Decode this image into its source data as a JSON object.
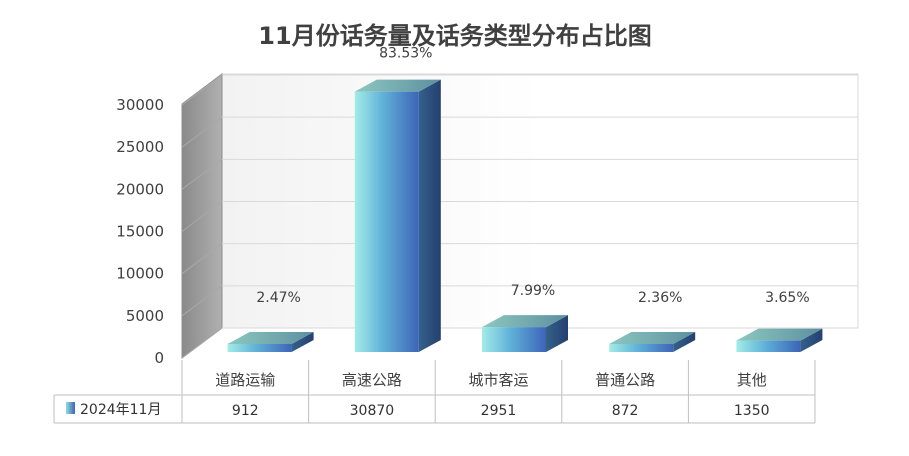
{
  "chart_data": {
    "type": "bar",
    "title": "11月份话务量及话务类型分布占比图",
    "categories": [
      "道路运输",
      "高速公路",
      "城市客运",
      "普通公路",
      "其他"
    ],
    "series": [
      {
        "name": "2024年11月",
        "values": [
          912,
          30870,
          2951,
          872,
          1350
        ]
      }
    ],
    "data_labels": [
      "2.47%",
      "83.53%",
      "7.99%",
      "2.36%",
      "3.65%"
    ],
    "y_ticks": [
      "0",
      "5000",
      "10000",
      "15000",
      "20000",
      "25000",
      "30000"
    ],
    "ylim": [
      0,
      30000
    ],
    "grid": true,
    "legend": "data-table",
    "style": "3d-column",
    "colors": {
      "bar_light": "#8fdde0",
      "bar_mid": "#5aa9d6",
      "bar_dark": "#3a5fb0",
      "bar_top": "#6a9aa0",
      "bar_side": "#2b4a7a",
      "wall": "#9a9a9a"
    }
  }
}
